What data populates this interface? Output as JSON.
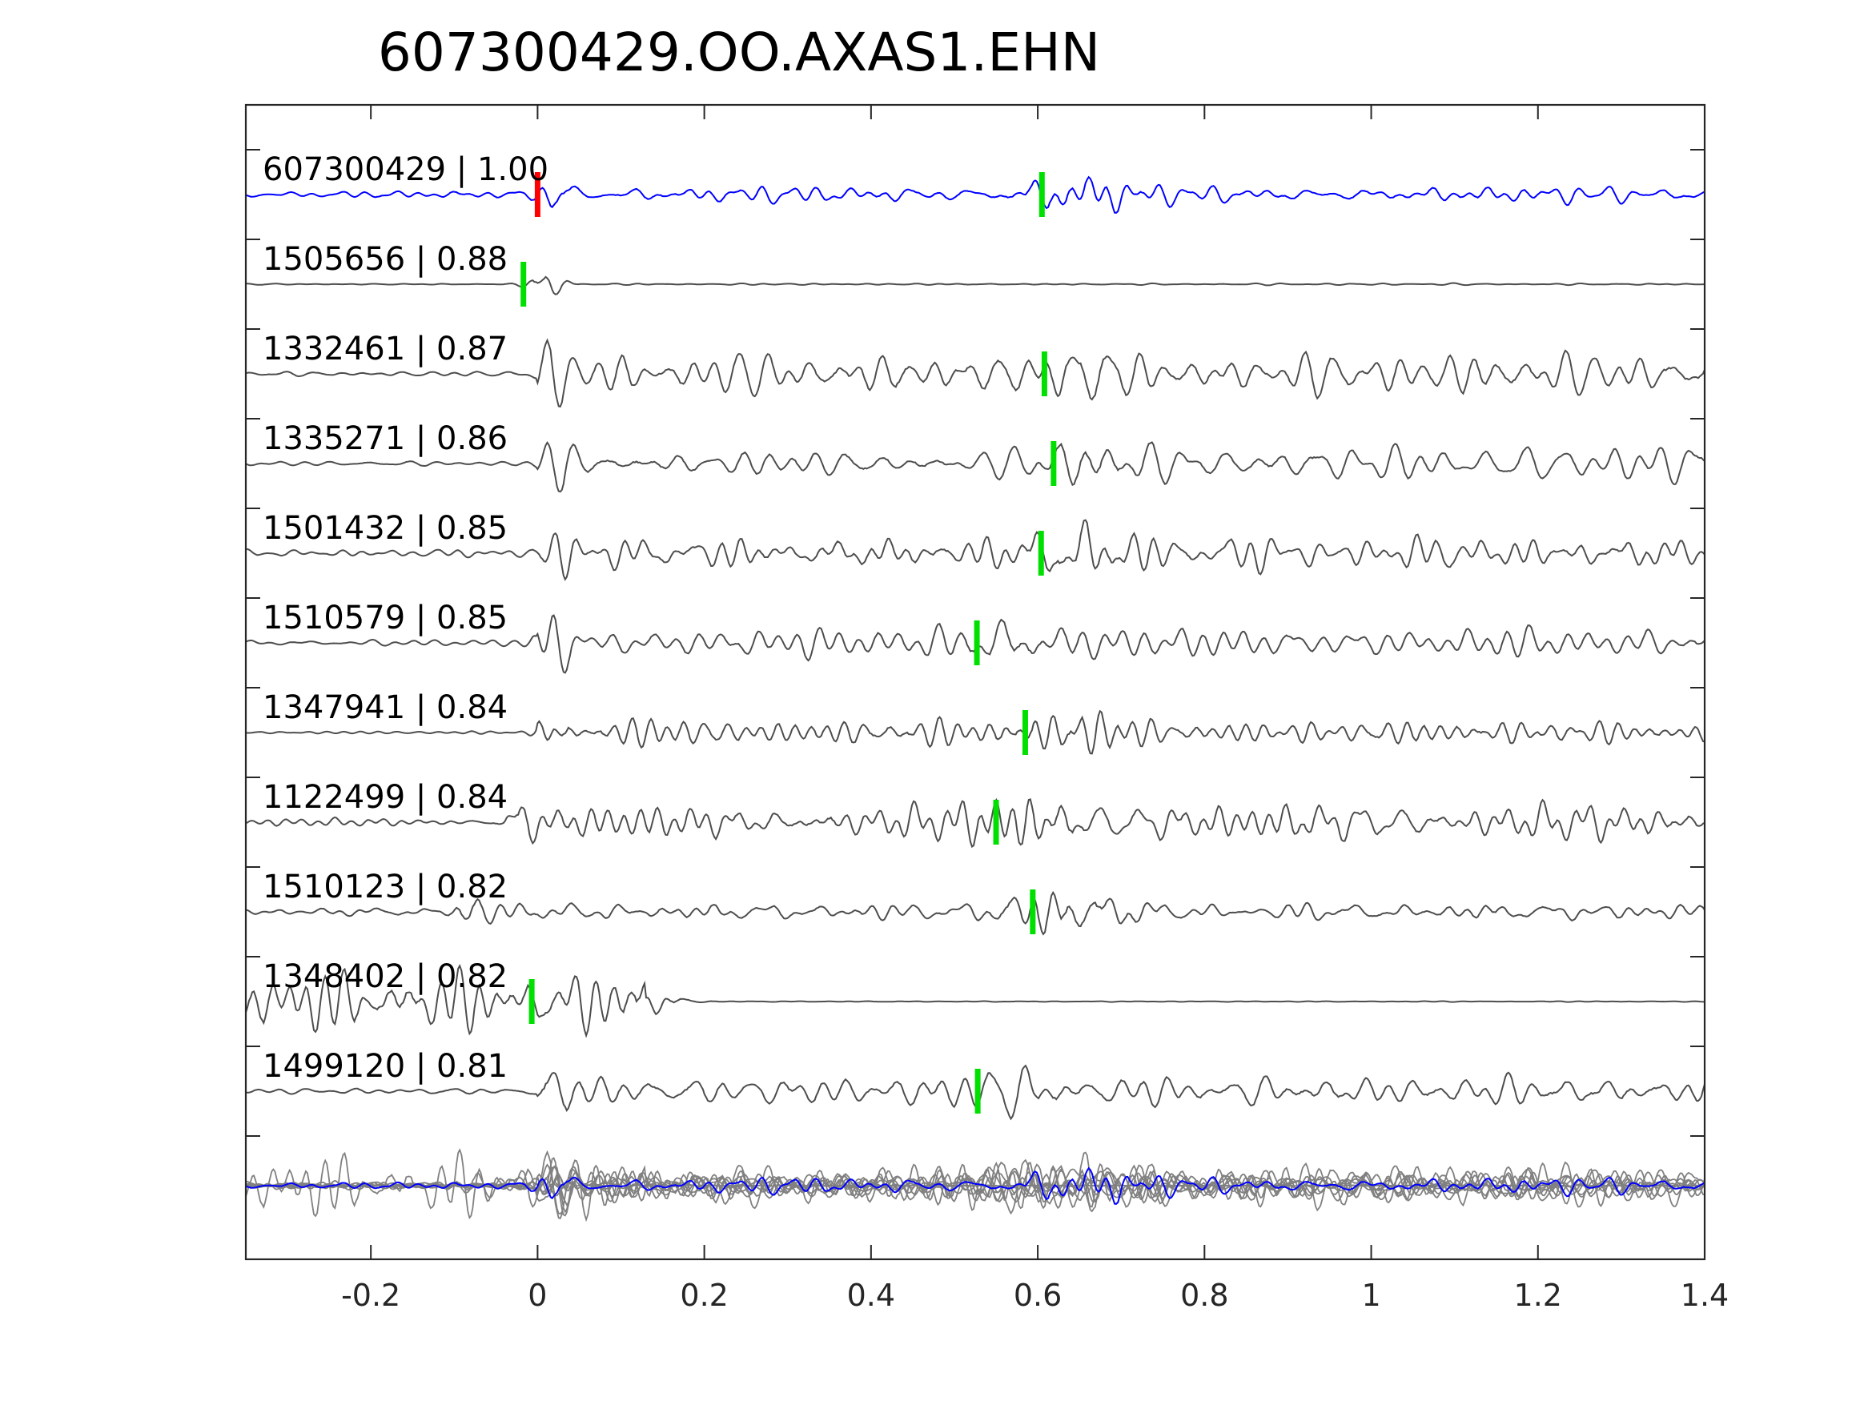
{
  "chart_data": {
    "type": "line",
    "title": "607300429.OO.AXAS1.EHN",
    "xlabel": "",
    "ylabel": "",
    "xlim": [
      -0.35,
      1.4
    ],
    "x_ticks": [
      -0.2,
      0,
      0.2,
      0.4,
      0.6,
      0.8,
      1,
      1.2,
      1.4
    ],
    "x_tick_labels": [
      "-0.2",
      "0",
      "0.2",
      "0.4",
      "0.6",
      "0.8",
      "1",
      "1.2",
      "1.4"
    ],
    "grid": false,
    "colors": {
      "master_trace": "#0000ff",
      "template_trace": "#4d4d4d",
      "stack_trace": "#808080",
      "p_pick_master": "#ff0000",
      "s_pick": "#00e000",
      "axis": "#262626"
    },
    "traces": [
      {
        "id": "607300429",
        "cc": "1.00",
        "label": "607300429 | 1.00",
        "color": "#0000ff",
        "p_pick": 0.0,
        "s_pick": 0.605,
        "onset": 0.0,
        "pre_amp": 0.12,
        "noise_amp": 0.28,
        "ps_amp": 0.7
      },
      {
        "id": "1505656",
        "cc": "0.88",
        "label": "1505656 | 0.88",
        "color": "#4d4d4d",
        "p_pick": -0.017,
        "s_pick": -0.017,
        "onset": -0.01,
        "pre_amp": 0.02,
        "noise_amp": 0.05,
        "ps_amp": 0.9
      },
      {
        "id": "1332461",
        "cc": "0.87",
        "label": "1332461 | 0.87",
        "color": "#4d4d4d",
        "p_pick": null,
        "s_pick": 0.608,
        "onset": 0.0,
        "pre_amp": 0.12,
        "noise_amp": 0.85,
        "ps_amp": 0.9
      },
      {
        "id": "1335271",
        "cc": "0.86",
        "label": "1335271 | 0.86",
        "color": "#4d4d4d",
        "p_pick": null,
        "s_pick": 0.619,
        "onset": 0.0,
        "pre_amp": 0.1,
        "noise_amp": 0.6,
        "ps_amp": 1.0
      },
      {
        "id": "1501432",
        "cc": "0.85",
        "label": "1501432 | 0.85",
        "color": "#4d4d4d",
        "p_pick": null,
        "s_pick": 0.604,
        "onset": 0.0,
        "pre_amp": 0.12,
        "noise_amp": 0.55,
        "ps_amp": 0.75
      },
      {
        "id": "1510579",
        "cc": "0.85",
        "label": "1510579 | 0.85",
        "color": "#4d4d4d",
        "p_pick": null,
        "s_pick": 0.527,
        "onset": 0.0,
        "pre_amp": 0.1,
        "noise_amp": 0.45,
        "ps_amp": 0.6
      },
      {
        "id": "1347941",
        "cc": "0.84",
        "label": "1347941 | 0.84",
        "color": "#4d4d4d",
        "p_pick": null,
        "s_pick": 0.585,
        "onset": 0.0,
        "pre_amp": 0.05,
        "noise_amp": 0.55,
        "ps_amp": 0.9
      },
      {
        "id": "1122499",
        "cc": "0.84",
        "label": "1122499 | 0.84",
        "color": "#4d4d4d",
        "p_pick": null,
        "s_pick": 0.55,
        "onset": -0.04,
        "pre_amp": 0.15,
        "noise_amp": 0.65,
        "ps_amp": 0.8
      },
      {
        "id": "1510123",
        "cc": "0.82",
        "label": "1510123 | 0.82",
        "color": "#4d4d4d",
        "p_pick": null,
        "s_pick": 0.594,
        "onset": -0.1,
        "pre_amp": 0.18,
        "noise_amp": 0.35,
        "ps_amp": 1.3
      },
      {
        "id": "1348402",
        "cc": "0.82",
        "label": "1348402 | 0.82",
        "color": "#4d4d4d",
        "p_pick": null,
        "s_pick": -0.007,
        "onset": 0.13,
        "pre_amp": 1.3,
        "noise_amp": 0.03,
        "ps_amp": 0.05
      },
      {
        "id": "1499120",
        "cc": "0.81",
        "label": "1499120 | 0.81",
        "color": "#4d4d4d",
        "p_pick": null,
        "s_pick": 0.528,
        "onset": 0.0,
        "pre_amp": 0.15,
        "noise_amp": 0.7,
        "ps_amp": 0.8
      }
    ],
    "stack": {
      "description_visible": false,
      "color": "#808080",
      "master_color": "#0000ff"
    }
  }
}
